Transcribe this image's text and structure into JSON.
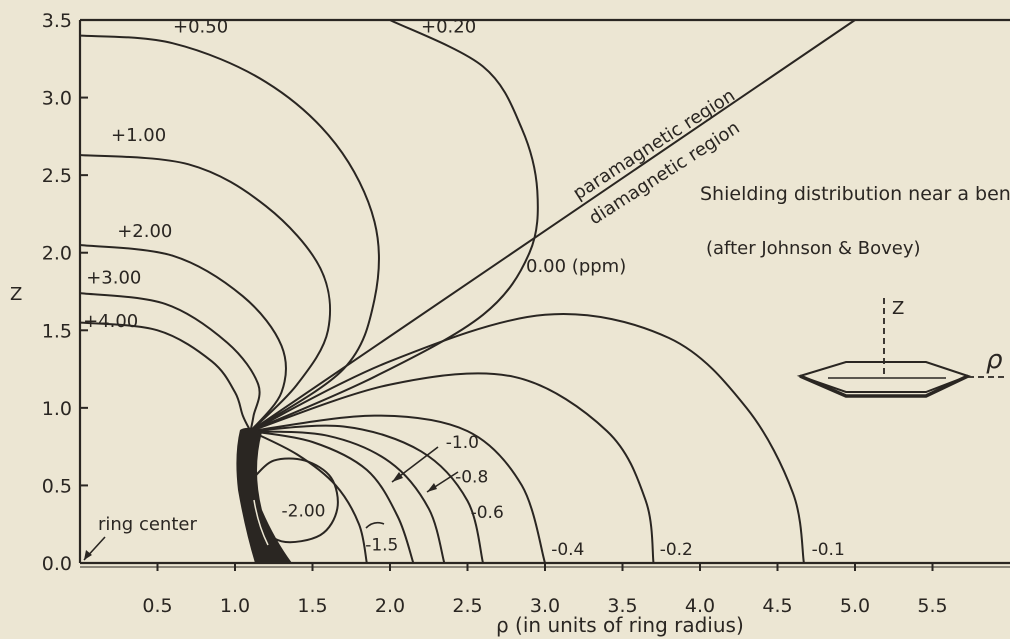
{
  "chart_data": {
    "type": "line",
    "title": "Shielding distribution near a benzene ring.",
    "subtitle": "(after Johnson & Bovey)",
    "xlabel": "ρ (in units of ring radius)",
    "ylabel": "Z",
    "xlim": [
      0.0,
      6.0
    ],
    "ylim": [
      0.0,
      3.5
    ],
    "x_ticks": [
      "0.5",
      "1.0",
      "1.5",
      "2.0",
      "2.5",
      "3.0",
      "3.5",
      "4.0",
      "4.5",
      "5.0",
      "5.5"
    ],
    "y_ticks": [
      "0.0",
      "0.5",
      "1.0",
      "1.5",
      "2.0",
      "2.5",
      "3.0",
      "3.5"
    ],
    "region_labels": [
      "paramagnetic region",
      "diamagnetic region"
    ],
    "zero_label": "0.00 (ppm)",
    "ring_center_label": "ring center",
    "inset": {
      "z_label": "Z",
      "rho_label": "ρ"
    },
    "series": [
      {
        "name": "+0.20",
        "label_at": [
          2.2,
          3.42
        ],
        "x": [
          2.0,
          2.6,
          2.85,
          2.95,
          2.9,
          2.6,
          1.9,
          1.1
        ],
        "y": [
          3.5,
          3.2,
          2.8,
          2.4,
          2.0,
          1.6,
          1.2,
          0.85
        ]
      },
      {
        "name": "+0.50",
        "label_at": [
          0.6,
          3.42
        ],
        "x": [
          0.0,
          0.6,
          1.2,
          1.65,
          1.9,
          1.9,
          1.7,
          1.1
        ],
        "y": [
          3.4,
          3.35,
          3.1,
          2.7,
          2.2,
          1.7,
          1.25,
          0.85
        ]
      },
      {
        "name": "+1.00",
        "label_at": [
          0.2,
          2.72
        ],
        "x": [
          0.0,
          0.7,
          1.2,
          1.55,
          1.6,
          1.4,
          1.1
        ],
        "y": [
          2.63,
          2.57,
          2.3,
          1.9,
          1.5,
          1.15,
          0.85
        ]
      },
      {
        "name": "+2.00",
        "label_at": [
          0.24,
          2.1
        ],
        "x": [
          0.0,
          0.6,
          1.05,
          1.3,
          1.3,
          1.1
        ],
        "y": [
          2.05,
          1.98,
          1.72,
          1.4,
          1.1,
          0.85
        ]
      },
      {
        "name": "+3.00",
        "label_at": [
          0.04,
          1.8
        ],
        "x": [
          0.0,
          0.55,
          0.95,
          1.15,
          1.12,
          1.1
        ],
        "y": [
          1.74,
          1.67,
          1.42,
          1.15,
          0.95,
          0.85
        ]
      },
      {
        "name": "+4.00",
        "label_at": [
          0.02,
          1.52
        ],
        "x": [
          0.0,
          0.5,
          0.85,
          1.0,
          1.05,
          1.1
        ],
        "y": [
          1.55,
          1.5,
          1.3,
          1.1,
          0.95,
          0.85
        ]
      },
      {
        "name": "0.00 (ppm)",
        "x": [
          1.1,
          5.0
        ],
        "y": [
          0.85,
          3.5
        ]
      },
      {
        "name": "-0.1",
        "label_at": [
          4.72,
          0.05
        ],
        "x": [
          1.1,
          2.0,
          3.0,
          3.8,
          4.3,
          4.6,
          4.67
        ],
        "y": [
          0.85,
          1.3,
          1.6,
          1.45,
          1.0,
          0.45,
          0.0
        ]
      },
      {
        "name": "-0.2",
        "label_at": [
          3.74,
          0.05
        ],
        "x": [
          1.1,
          2.0,
          2.8,
          3.4,
          3.65,
          3.7
        ],
        "y": [
          0.85,
          1.15,
          1.2,
          0.85,
          0.4,
          0.0
        ]
      },
      {
        "name": "-0.4",
        "label_at": [
          3.04,
          0.05
        ],
        "x": [
          1.1,
          1.9,
          2.5,
          2.85,
          3.0
        ],
        "y": [
          0.85,
          0.95,
          0.85,
          0.5,
          0.0
        ]
      },
      {
        "name": "-0.6",
        "label_at": [
          2.52,
          0.29
        ],
        "x": [
          1.1,
          1.7,
          2.2,
          2.5,
          2.6
        ],
        "y": [
          0.85,
          0.88,
          0.72,
          0.4,
          0.0
        ]
      },
      {
        "name": "-0.8",
        "label_at": [
          2.42,
          0.52
        ],
        "x": [
          1.1,
          1.6,
          2.0,
          2.25,
          2.35
        ],
        "y": [
          0.85,
          0.82,
          0.65,
          0.35,
          0.0
        ]
      },
      {
        "name": "-1.0",
        "label_at": [
          2.36,
          0.74
        ],
        "x": [
          1.1,
          1.5,
          1.85,
          2.05,
          2.15
        ],
        "y": [
          0.85,
          0.78,
          0.6,
          0.3,
          0.0
        ]
      },
      {
        "name": "-1.5",
        "label_at": [
          1.84,
          0.08
        ],
        "x": [
          1.1,
          1.4,
          1.65,
          1.8,
          1.85
        ],
        "y": [
          0.85,
          0.7,
          0.5,
          0.25,
          0.0
        ]
      },
      {
        "name": "-2.00",
        "label_at": [
          1.3,
          0.3
        ],
        "x": [
          1.12,
          1.25,
          1.45,
          1.62,
          1.66,
          1.55,
          1.3,
          1.15,
          1.12
        ],
        "y": [
          0.55,
          0.66,
          0.66,
          0.55,
          0.35,
          0.18,
          0.14,
          0.28,
          0.55
        ]
      }
    ]
  }
}
